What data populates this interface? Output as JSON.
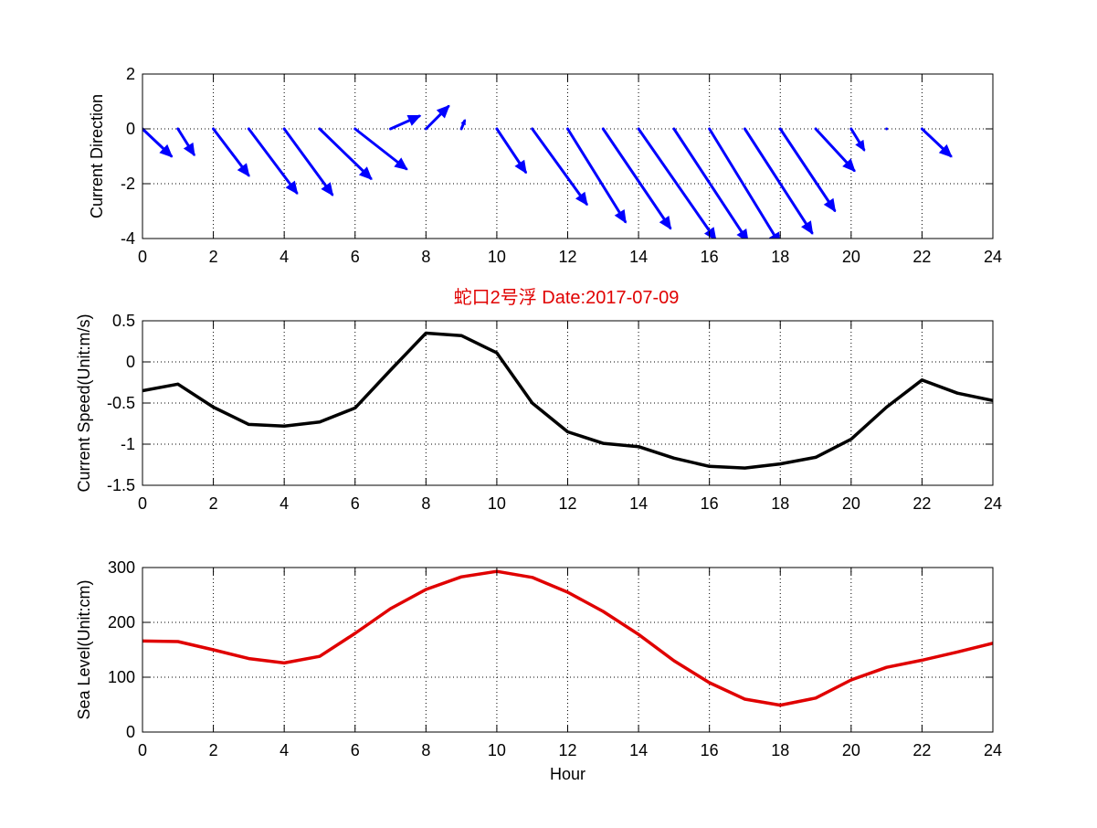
{
  "title": "蛇口2号浮   Date:2017-07-09",
  "colors": {
    "title": "#e00000",
    "direction": "#0000ff",
    "speed": "#000000",
    "level": "#e00000"
  },
  "chart_data": [
    {
      "type": "quiver",
      "ylabel": "Current Direction",
      "xlabel": "",
      "xlim": [
        0,
        24
      ],
      "ylim": [
        -4,
        2
      ],
      "xticks": [
        0,
        2,
        4,
        6,
        8,
        10,
        12,
        14,
        16,
        18,
        20,
        22,
        24
      ],
      "yticks": [
        -4,
        -2,
        0,
        2
      ],
      "grid": true,
      "series": [
        {
          "color": "#0000ff",
          "points": [
            {
              "x": 0,
              "u": 0.9,
              "v": -0.85
            },
            {
              "x": 1,
              "u": 0.5,
              "v": -0.8
            },
            {
              "x": 2,
              "u": 1.1,
              "v": -1.45
            },
            {
              "x": 3,
              "u": 1.5,
              "v": -2.0
            },
            {
              "x": 4,
              "u": 1.5,
              "v": -2.05
            },
            {
              "x": 5,
              "u": 1.6,
              "v": -1.55
            },
            {
              "x": 6,
              "u": 1.6,
              "v": -1.25
            },
            {
              "x": 7,
              "u": 0.9,
              "v": 0.4
            },
            {
              "x": 8,
              "u": 0.7,
              "v": 0.7
            },
            {
              "x": 9,
              "u": 0.1,
              "v": 0.25
            },
            {
              "x": 10,
              "u": 0.9,
              "v": -1.35
            },
            {
              "x": 11,
              "u": 1.7,
              "v": -2.35
            },
            {
              "x": 12,
              "u": 1.8,
              "v": -2.9
            },
            {
              "x": 13,
              "u": 2.1,
              "v": -3.1
            },
            {
              "x": 14,
              "u": 2.4,
              "v": -3.45
            },
            {
              "x": 15,
              "u": 2.3,
              "v": -3.5
            },
            {
              "x": 16,
              "u": 2.2,
              "v": -3.6
            },
            {
              "x": 17,
              "u": 2.1,
              "v": -3.25
            },
            {
              "x": 18,
              "u": 1.7,
              "v": -2.55
            },
            {
              "x": 19,
              "u": 1.2,
              "v": -1.3
            },
            {
              "x": 20,
              "u": 0.4,
              "v": -0.65
            },
            {
              "x": 21,
              "u": 0.0,
              "v": 0.0
            },
            {
              "x": 22,
              "u": 0.9,
              "v": -0.85
            }
          ]
        }
      ]
    },
    {
      "type": "line",
      "ylabel": "Current Speed(Unit:m/s)",
      "xlabel": "",
      "xlim": [
        0,
        24
      ],
      "ylim": [
        -1.5,
        0.5
      ],
      "xticks": [
        0,
        2,
        4,
        6,
        8,
        10,
        12,
        14,
        16,
        18,
        20,
        22,
        24
      ],
      "yticks": [
        -1.5,
        -1,
        -0.5,
        0,
        0.5
      ],
      "yticklabels": [
        "-1.5",
        "-1",
        "-0.5",
        "0",
        "0.5"
      ],
      "grid": true,
      "series": [
        {
          "color": "#000000",
          "x": [
            0,
            1,
            2,
            3,
            4,
            5,
            6,
            7,
            8,
            9,
            10,
            11,
            12,
            13,
            14,
            15,
            16,
            17,
            18,
            19,
            20,
            21,
            22,
            23,
            24
          ],
          "values": [
            -0.35,
            -0.27,
            -0.55,
            -0.76,
            -0.78,
            -0.73,
            -0.56,
            -0.1,
            0.35,
            0.32,
            0.11,
            -0.5,
            -0.85,
            -0.99,
            -1.03,
            -1.17,
            -1.27,
            -1.29,
            -1.24,
            -1.16,
            -0.94,
            -0.55,
            -0.22,
            -0.38,
            -0.47
          ]
        }
      ]
    },
    {
      "type": "line",
      "ylabel": "Sea Level(Unit:cm)",
      "xlabel": "Hour",
      "xlim": [
        0,
        24
      ],
      "ylim": [
        0,
        300
      ],
      "xticks": [
        0,
        2,
        4,
        6,
        8,
        10,
        12,
        14,
        16,
        18,
        20,
        22,
        24
      ],
      "yticks": [
        0,
        100,
        200,
        300
      ],
      "grid": true,
      "series": [
        {
          "color": "#e00000",
          "x": [
            0,
            1,
            2,
            3,
            4,
            5,
            6,
            7,
            8,
            9,
            10,
            11,
            12,
            13,
            14,
            15,
            16,
            17,
            18,
            19,
            20,
            21,
            22,
            23,
            24
          ],
          "values": [
            166,
            165,
            150,
            134,
            126,
            138,
            180,
            225,
            260,
            283,
            293,
            282,
            255,
            220,
            178,
            130,
            90,
            60,
            49,
            62,
            95,
            118,
            131,
            146,
            162
          ]
        }
      ]
    }
  ]
}
